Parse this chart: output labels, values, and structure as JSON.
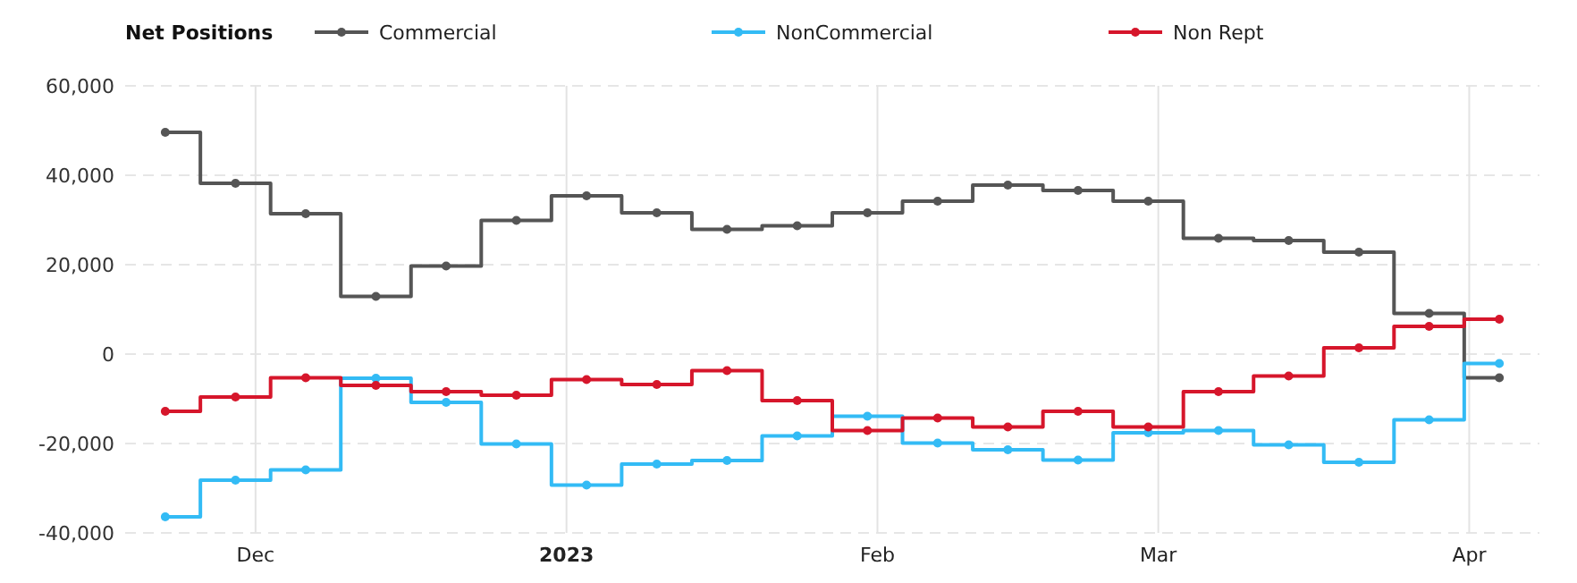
{
  "chart_data": {
    "type": "step",
    "legend_title": "Net Positions",
    "legend": "top",
    "grid": true,
    "marker": "circle",
    "line_style": "solid",
    "x": [
      "2022-11-22",
      "2022-11-29",
      "2022-12-06",
      "2022-12-13",
      "2022-12-20",
      "2022-12-27",
      "2023-01-03",
      "2023-01-10",
      "2023-01-17",
      "2023-01-24",
      "2023-01-31",
      "2023-02-07",
      "2023-02-14",
      "2023-02-21",
      "2023-02-28",
      "2023-03-07",
      "2023-03-14",
      "2023-03-21",
      "2023-03-28",
      "2023-04-04"
    ],
    "xlim": [
      "2022-11-18",
      "2023-04-08"
    ],
    "xticks": [
      {
        "value": "2022-12-01",
        "label": "Dec"
      },
      {
        "value": "2023-01-01",
        "label": "2023"
      },
      {
        "value": "2023-02-01",
        "label": "Feb"
      },
      {
        "value": "2023-03-01",
        "label": "Mar"
      },
      {
        "value": "2023-04-01",
        "label": "Apr"
      }
    ],
    "ylim": [
      -40000,
      60000
    ],
    "yticks": [
      {
        "value": -40000,
        "label": "-40,000"
      },
      {
        "value": -20000,
        "label": "-20,000"
      },
      0,
      {
        "value": 20000,
        "label": "20,000"
      },
      {
        "value": 40000,
        "label": "40,000"
      },
      {
        "value": 60000,
        "label": "60,000"
      }
    ],
    "series": [
      {
        "name": "Commercial",
        "color": "#555555",
        "values": [
          49600,
          38200,
          31400,
          12900,
          19700,
          29900,
          35400,
          31600,
          27900,
          28700,
          31600,
          34200,
          37800,
          36600,
          34200,
          25900,
          25400,
          22800,
          9100,
          -5300
        ]
      },
      {
        "name": "NonCommercial",
        "color": "#33bbf5",
        "values": [
          -36400,
          -28200,
          -25900,
          -5400,
          -10800,
          -20100,
          -29300,
          -24600,
          -23800,
          -18300,
          -13900,
          -19900,
          -21400,
          -23700,
          -17600,
          -17100,
          -20300,
          -24200,
          -14700,
          -2100
        ]
      },
      {
        "name": "Non Rept",
        "color": "#d6162b",
        "values": [
          -12800,
          -9600,
          -5300,
          -7000,
          -8400,
          -9200,
          -5700,
          -6800,
          -3700,
          -10400,
          -17100,
          -14300,
          -16300,
          -12800,
          -16300,
          -8400,
          -4900,
          1400,
          6200,
          7800
        ]
      }
    ]
  }
}
